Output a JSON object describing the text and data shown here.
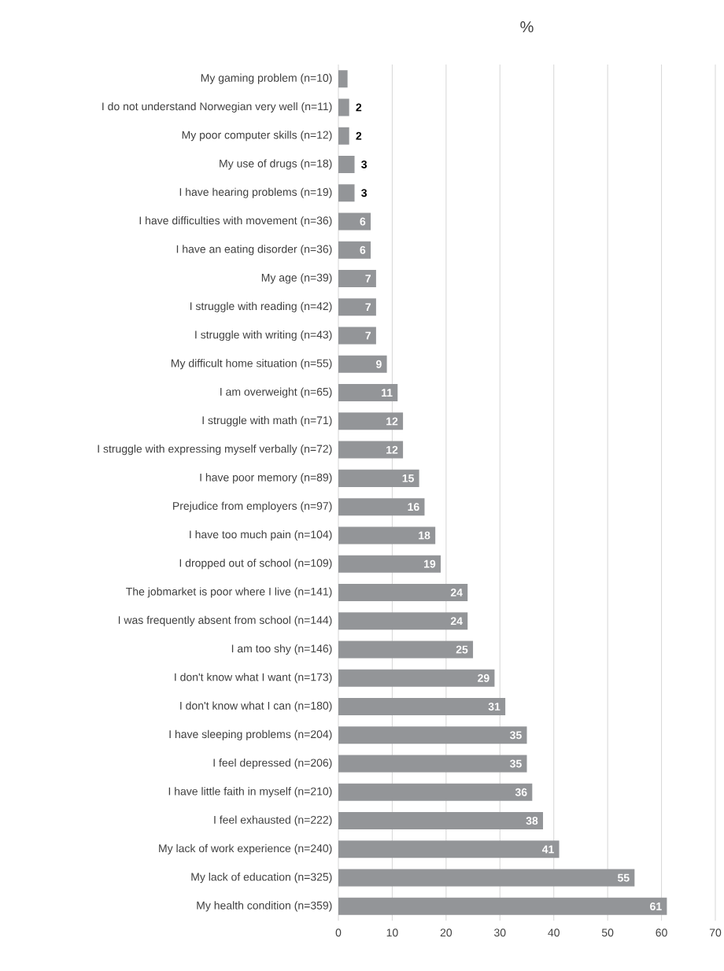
{
  "chart_data": {
    "type": "bar",
    "orientation": "horizontal",
    "title": "%",
    "categories": [
      "My gaming problem (n=10)",
      "I do not understand Norwegian very well (n=11)",
      "My poor computer skills (n=12)",
      "My use of drugs (n=18)",
      "I have hearing problems (n=19)",
      "I have difficulties with movement (n=36)",
      "I have an eating disorder (n=36)",
      "My age (n=39)",
      "I struggle with reading (n=42)",
      "I struggle with writing (n=43)",
      "My difficult home situation (n=55)",
      "I am overweight (n=65)",
      "I struggle with math (n=71)",
      "I struggle with expressing myself verbally (n=72)",
      "I have poor memory (n=89)",
      "Prejudice from employers (n=97)",
      "I have too much pain (n=104)",
      "I dropped out of school (n=109)",
      "The jobmarket is poor where I live (n=141)",
      "I was frequently absent from school (n=144)",
      "I am too shy (n=146)",
      "I don't know what I want (n=173)",
      "I don't know what I can (n=180)",
      "I have sleeping problems (n=204)",
      "I feel depressed (n=206)",
      "I have little faith in myself (n=210)",
      "I feel exhausted (n=222)",
      "My lack of work experience (n=240)",
      "My lack of education (n=325)",
      "My health condition (n=359)"
    ],
    "values": [
      1.7,
      2,
      2,
      3,
      3,
      6,
      6,
      7,
      7,
      7,
      9,
      11,
      12,
      12,
      15,
      16,
      18,
      19,
      24,
      24,
      25,
      29,
      31,
      35,
      35,
      36,
      38,
      41,
      55,
      61
    ],
    "value_labels": [
      null,
      "2",
      "2",
      "3",
      "3",
      "6",
      "6",
      "7",
      "7",
      "7",
      "9",
      "11",
      "12",
      "12",
      "15",
      "16",
      "18",
      "19",
      "24",
      "24",
      "25",
      "29",
      "31",
      "35",
      "35",
      "36",
      "38",
      "41",
      "55",
      "61"
    ],
    "color": "#939598",
    "xlim": [
      0,
      70
    ],
    "xticks": [
      0,
      10,
      20,
      30,
      40,
      50,
      60,
      70
    ],
    "grid": "x"
  }
}
